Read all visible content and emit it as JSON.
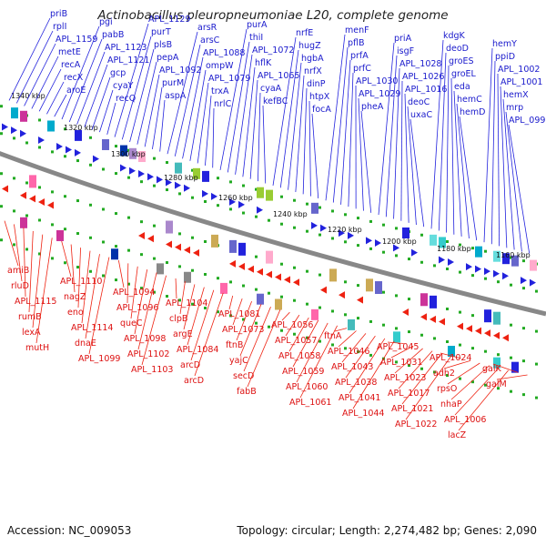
{
  "title": "Actinobacillus pleuropneumoniae L20, complete genome",
  "accession": "Accession: NC_009053",
  "topology": "Topology: circular; Length: 2,274,482 bp; Genes: 2,090",
  "colors": {
    "forward": "#2222dd",
    "reverse": "#ee2211",
    "backbone": "#888888",
    "tick": "#22aa22"
  },
  "kbp_labels": [
    "1340 kbp",
    "1320 kbp",
    "1300 kbp",
    "1280 kbp",
    "1260 kbp",
    "1240 kbp",
    "1220 kbp",
    "1200 kbp",
    "1180 kbp",
    "1160 kbp"
  ],
  "forward_labels": [
    "priB",
    "rplI",
    "APL_1159",
    "metE",
    "recA",
    "recX",
    "aroE",
    "pgi",
    "pabB",
    "APL_1123",
    "APL_1121",
    "gcp",
    "cyaY",
    "recQ",
    "APL_1129",
    "purT",
    "plsB",
    "pepA",
    "APL_1092",
    "purM",
    "aspA",
    "arsR",
    "arsC",
    "APL_1088",
    "ompW",
    "APL_1079",
    "trxA",
    "nrlC",
    "purA",
    "thiI",
    "APL_1072",
    "hflK",
    "APL_1065",
    "cyaA",
    "kefBC",
    "nrfE",
    "hugZ",
    "hgbA",
    "nrfX",
    "dinP",
    "htpX",
    "focA",
    "menF",
    "pflB",
    "prfA",
    "prfC",
    "APL_1030",
    "APL_1029",
    "pheA",
    "priA",
    "isgF",
    "APL_1028",
    "APL_1026",
    "APL_1016",
    "deoC",
    "uxaC",
    "kdgK",
    "deoD",
    "groES",
    "groEL",
    "eda",
    "hemC",
    "hemD",
    "hemY",
    "ppiD",
    "APL_1002",
    "APL_1001",
    "hemX",
    "mrp",
    "APL_0999"
  ],
  "reverse_labels": [
    "amiB",
    "rluD",
    "APL_1115",
    "rumB",
    "lexA",
    "mutH",
    "APL_1110",
    "nagZ",
    "eno",
    "APL_1114",
    "dnaE",
    "APL_1099",
    "APL_1094",
    "APL_1096",
    "queC",
    "APL_1098",
    "APL_1102",
    "APL_1103",
    "APL_1104",
    "clpB",
    "argE",
    "APL_1084",
    "arcD",
    "arcD",
    "APL_1081",
    "APL_1073",
    "ftnB",
    "yajC",
    "secD",
    "fabB",
    "APL_1056",
    "APL_1057",
    "APL_1058",
    "APL_1059",
    "APL_1060",
    "APL_1061",
    "ftnA",
    "APL_1046",
    "APL_1043",
    "APL_1038",
    "APL_1041",
    "APL_1044",
    "APL_1045",
    "APL_1031",
    "APL_1023",
    "APL_1017",
    "APL_1021",
    "APL_1022",
    "APL_1024",
    "adh2",
    "rpsO",
    "nhaP",
    "APL_1006",
    "lacZ",
    "galK",
    "galM"
  ]
}
